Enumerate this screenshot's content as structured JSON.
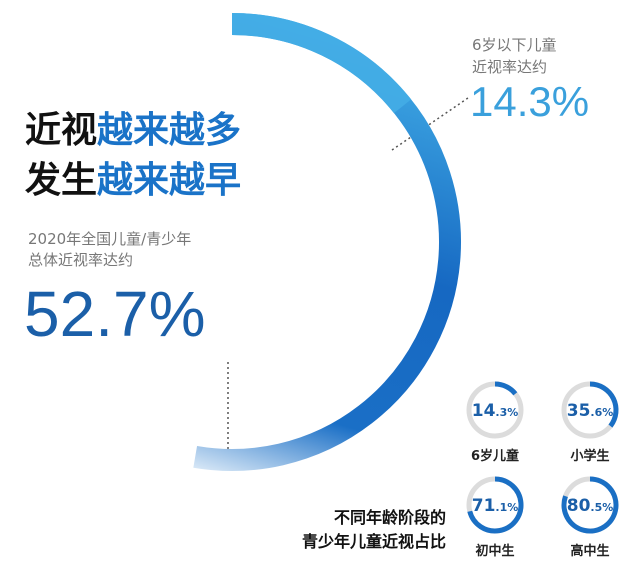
{
  "chart_data": {
    "type": "radial",
    "title_lines": [
      [
        {
          "text": "近视",
          "color": "#111111"
        },
        {
          "text": "越来越多",
          "color": "#1a73c8"
        }
      ],
      [
        {
          "text": "发生",
          "color": "#111111"
        },
        {
          "text": "越来越早",
          "color": "#1a73c8"
        }
      ]
    ],
    "main": {
      "label_lines": [
        "2020年全国儿童/青少年",
        "总体近视率达约"
      ],
      "value": 52.7,
      "value_label": "52.7%"
    },
    "callout": {
      "label_lines": [
        "6岁以下儿童",
        "近视率达约"
      ],
      "value": 14.3,
      "value_label": "14.3%"
    },
    "caption_lines": [
      "不同年龄阶段的",
      "青少年儿童近视占比"
    ],
    "groups": [
      {
        "name": "6岁儿童",
        "value": 14.3,
        "value_label": "14.3%"
      },
      {
        "name": "小学生",
        "value": 35.6,
        "value_label": "35.6%"
      },
      {
        "name": "初中生",
        "value": 71.1,
        "value_label": "71.1%"
      },
      {
        "name": "高中生",
        "value": 80.5,
        "value_label": "80.5%"
      }
    ],
    "scale_max": 100
  }
}
